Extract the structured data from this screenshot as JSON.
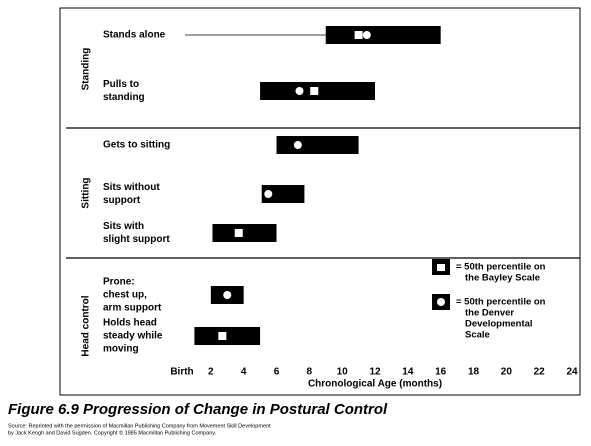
{
  "chart_data": {
    "type": "range",
    "title": "Figure 6.9 Progression of Change in Postural Control",
    "source": [
      "Source: Reprinted with the permission of Macmillan Publishing Company from Movement Skill Development",
      "by Jack Keogh and David Sugden. Copyright © 1985 Macmillan Publishing Company."
    ],
    "xlabel": "Chronological Age (months)",
    "xlim": [
      0,
      24
    ],
    "xticks": [
      {
        "value": 0,
        "label": "Birth"
      },
      2,
      4,
      6,
      8,
      10,
      12,
      14,
      16,
      18,
      20,
      22,
      24
    ],
    "color": "#000000",
    "groups": [
      {
        "name": "Standing",
        "items": [
          {
            "label": [
              "Stands alone"
            ],
            "start": 9,
            "end": 16,
            "bayley": 11,
            "denver": 11.5
          },
          {
            "label": [
              "Pulls to",
              "standing"
            ],
            "start": 5,
            "end": 12,
            "bayley": 8.3,
            "denver": 7.4
          }
        ]
      },
      {
        "name": "Sitting",
        "items": [
          {
            "label": [
              "Gets to sitting"
            ],
            "start": 6,
            "end": 11,
            "bayley": null,
            "denver": 7.3
          },
          {
            "label": [
              "Sits without",
              "support"
            ],
            "start": 5.1,
            "end": 7.7,
            "bayley": null,
            "denver": 5.5
          },
          {
            "label": [
              "Sits with",
              "slight support"
            ],
            "start": 2.1,
            "end": 6,
            "bayley": 3.7,
            "denver": null
          }
        ]
      },
      {
        "name": "Head control",
        "items": [
          {
            "label": [
              "Prone:",
              "chest up,",
              "arm support"
            ],
            "start": 2,
            "end": 4,
            "bayley": null,
            "denver": 3
          },
          {
            "label": [
              "Holds head",
              "steady while",
              "moving"
            ],
            "start": 1,
            "end": 5,
            "bayley": 2.7,
            "denver": null
          }
        ]
      }
    ],
    "legend": {
      "bayley": [
        "= 50th percentile on",
        "the Bayley Scale"
      ],
      "denver": [
        "= 50th percentile on",
        "the Denver",
        "Developmental",
        "Scale"
      ]
    }
  }
}
